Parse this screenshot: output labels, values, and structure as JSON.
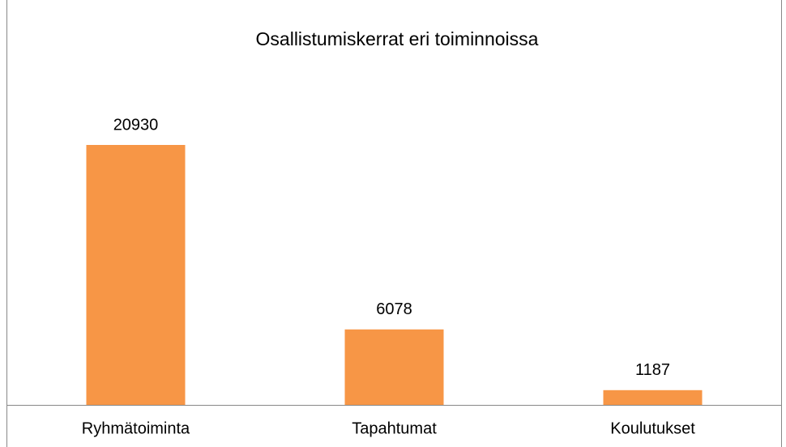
{
  "chart_data": {
    "type": "bar",
    "title": "Osallistumiskerrat eri toiminnoissa",
    "categories": [
      "Ryhmätoiminta",
      "Tapahtumat",
      "Koulutukset"
    ],
    "values": [
      20930,
      6078,
      1187
    ],
    "color": "#f79646"
  }
}
